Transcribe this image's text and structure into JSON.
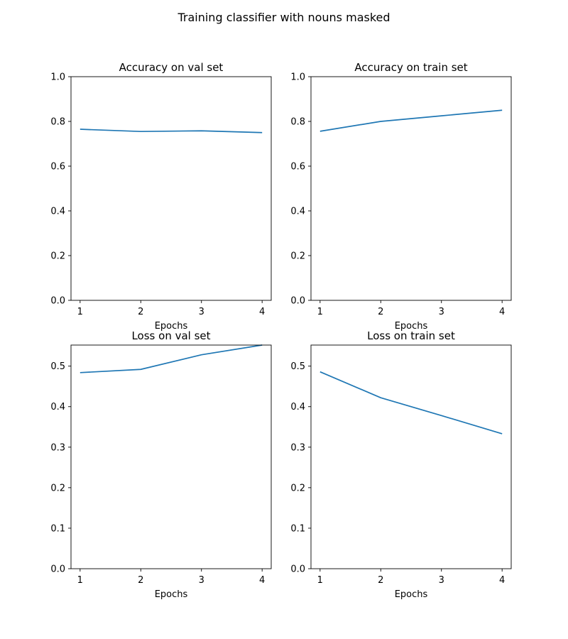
{
  "figure": {
    "title": "Training classifier with nouns masked"
  },
  "chart_data": [
    {
      "type": "line",
      "title": "Accuracy on val set",
      "xlabel": "Epochs",
      "ylabel": "",
      "x": [
        1,
        2,
        3,
        4
      ],
      "series": [
        {
          "values": [
            0.765,
            0.755,
            0.758,
            0.75
          ],
          "color": "#1f77b4"
        }
      ],
      "xlim": [
        0.85,
        4.15
      ],
      "ylim": [
        0,
        1.0
      ],
      "xticks": [
        1,
        2,
        3,
        4
      ],
      "xtick_labels": [
        "1",
        "2",
        "3",
        "4"
      ],
      "yticks": [
        0,
        0.2,
        0.4,
        0.6,
        0.8,
        1.0
      ],
      "ytick_labels": [
        "0.0",
        "0.2",
        "0.4",
        "0.6",
        "0.8",
        "1.0"
      ],
      "grid": false
    },
    {
      "type": "line",
      "title": "Accuracy on train set",
      "xlabel": "Epochs",
      "ylabel": "",
      "x": [
        1,
        2,
        3,
        4
      ],
      "series": [
        {
          "values": [
            0.756,
            0.8,
            0.825,
            0.85
          ],
          "color": "#1f77b4"
        }
      ],
      "xlim": [
        0.85,
        4.15
      ],
      "ylim": [
        0,
        1.0
      ],
      "xticks": [
        1,
        2,
        3,
        4
      ],
      "xtick_labels": [
        "1",
        "2",
        "3",
        "4"
      ],
      "yticks": [
        0,
        0.2,
        0.4,
        0.6,
        0.8,
        1.0
      ],
      "ytick_labels": [
        "0.0",
        "0.2",
        "0.4",
        "0.6",
        "0.8",
        "1.0"
      ],
      "grid": false
    },
    {
      "type": "line",
      "title": "Loss on val set",
      "xlabel": "Epochs",
      "ylabel": "",
      "x": [
        1,
        2,
        3,
        4
      ],
      "series": [
        {
          "values": [
            0.484,
            0.492,
            0.528,
            0.552
          ],
          "color": "#1f77b4"
        }
      ],
      "xlim": [
        0.85,
        4.15
      ],
      "ylim": [
        0,
        0.552
      ],
      "xticks": [
        1,
        2,
        3,
        4
      ],
      "xtick_labels": [
        "1",
        "2",
        "3",
        "4"
      ],
      "yticks": [
        0,
        0.1,
        0.2,
        0.3,
        0.4,
        0.5
      ],
      "ytick_labels": [
        "0.0",
        "0.1",
        "0.2",
        "0.3",
        "0.4",
        "0.5"
      ],
      "grid": false
    },
    {
      "type": "line",
      "title": "Loss on train set",
      "xlabel": "Epochs",
      "ylabel": "",
      "x": [
        1,
        2,
        3,
        4
      ],
      "series": [
        {
          "values": [
            0.486,
            0.422,
            0.378,
            0.333
          ],
          "color": "#1f77b4"
        }
      ],
      "xlim": [
        0.85,
        4.15
      ],
      "ylim": [
        0,
        0.552
      ],
      "xticks": [
        1,
        2,
        3,
        4
      ],
      "xtick_labels": [
        "1",
        "2",
        "3",
        "4"
      ],
      "yticks": [
        0,
        0.1,
        0.2,
        0.3,
        0.4,
        0.5
      ],
      "ytick_labels": [
        "0.0",
        "0.1",
        "0.2",
        "0.3",
        "0.4",
        "0.5"
      ],
      "grid": false
    }
  ]
}
